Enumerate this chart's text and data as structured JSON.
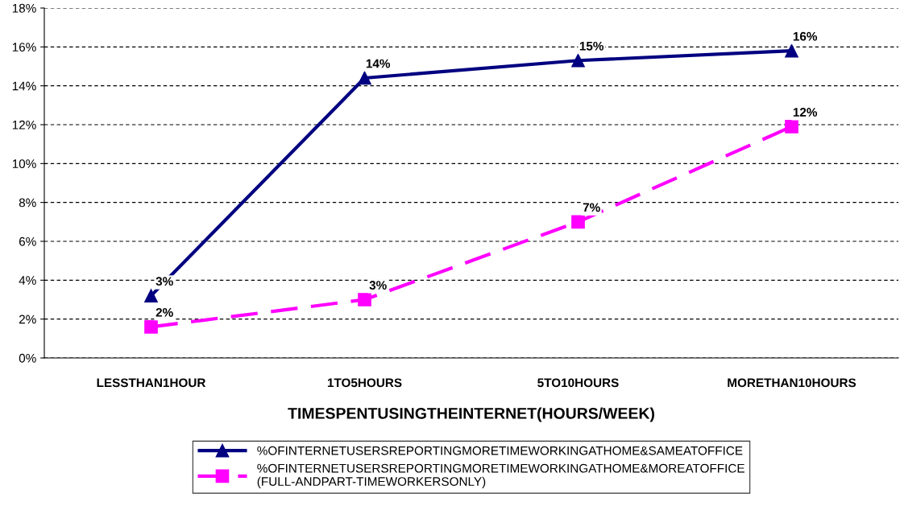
{
  "chart_data": {
    "type": "line",
    "xlabel": "TIMESPENTUSINGTHEINTERNET(HOURS/WEEK)",
    "categories": [
      "LESSTHAN1HOUR",
      "1TO5HOURS",
      "5TO10HOURS",
      "MORETHAN10HOURS"
    ],
    "ylim": [
      0,
      18
    ],
    "yticks": [
      {
        "value": 0,
        "label": "0%"
      },
      {
        "value": 2,
        "label": "2%"
      },
      {
        "value": 4,
        "label": "4%"
      },
      {
        "value": 6,
        "label": "6%"
      },
      {
        "value": 8,
        "label": "8%"
      },
      {
        "value": 10,
        "label": "10%"
      },
      {
        "value": 12,
        "label": "12%"
      },
      {
        "value": 14,
        "label": "14%"
      },
      {
        "value": 16,
        "label": "16%"
      },
      {
        "value": 18,
        "label": "18%"
      }
    ],
    "grid": "y",
    "legend": "bottom",
    "series": [
      {
        "name": "%OFINTERNETUSERSREPORTINGMORETIMEWORKINGATHOME&SAMEATOFFICE",
        "color": "#000080",
        "values": [
          3.2,
          14.4,
          15.3,
          15.8
        ],
        "value_labels": [
          "3%",
          "14%",
          "15%",
          "16%"
        ],
        "marker": "triangle",
        "line_style": "solid"
      },
      {
        "name": "%OFINTERNETUSERSREPORTINGMORETIMEWORKINGATHOME&MOREATOFFICE\n(FULL-ANDPART-TIMEWORKERSONLY)",
        "color": "#ff00ff",
        "values": [
          1.6,
          3.0,
          7.0,
          11.9
        ],
        "value_labels": [
          "2%",
          "3%",
          "7%",
          "12%"
        ],
        "marker": "square",
        "line_style": "dashed"
      }
    ]
  }
}
